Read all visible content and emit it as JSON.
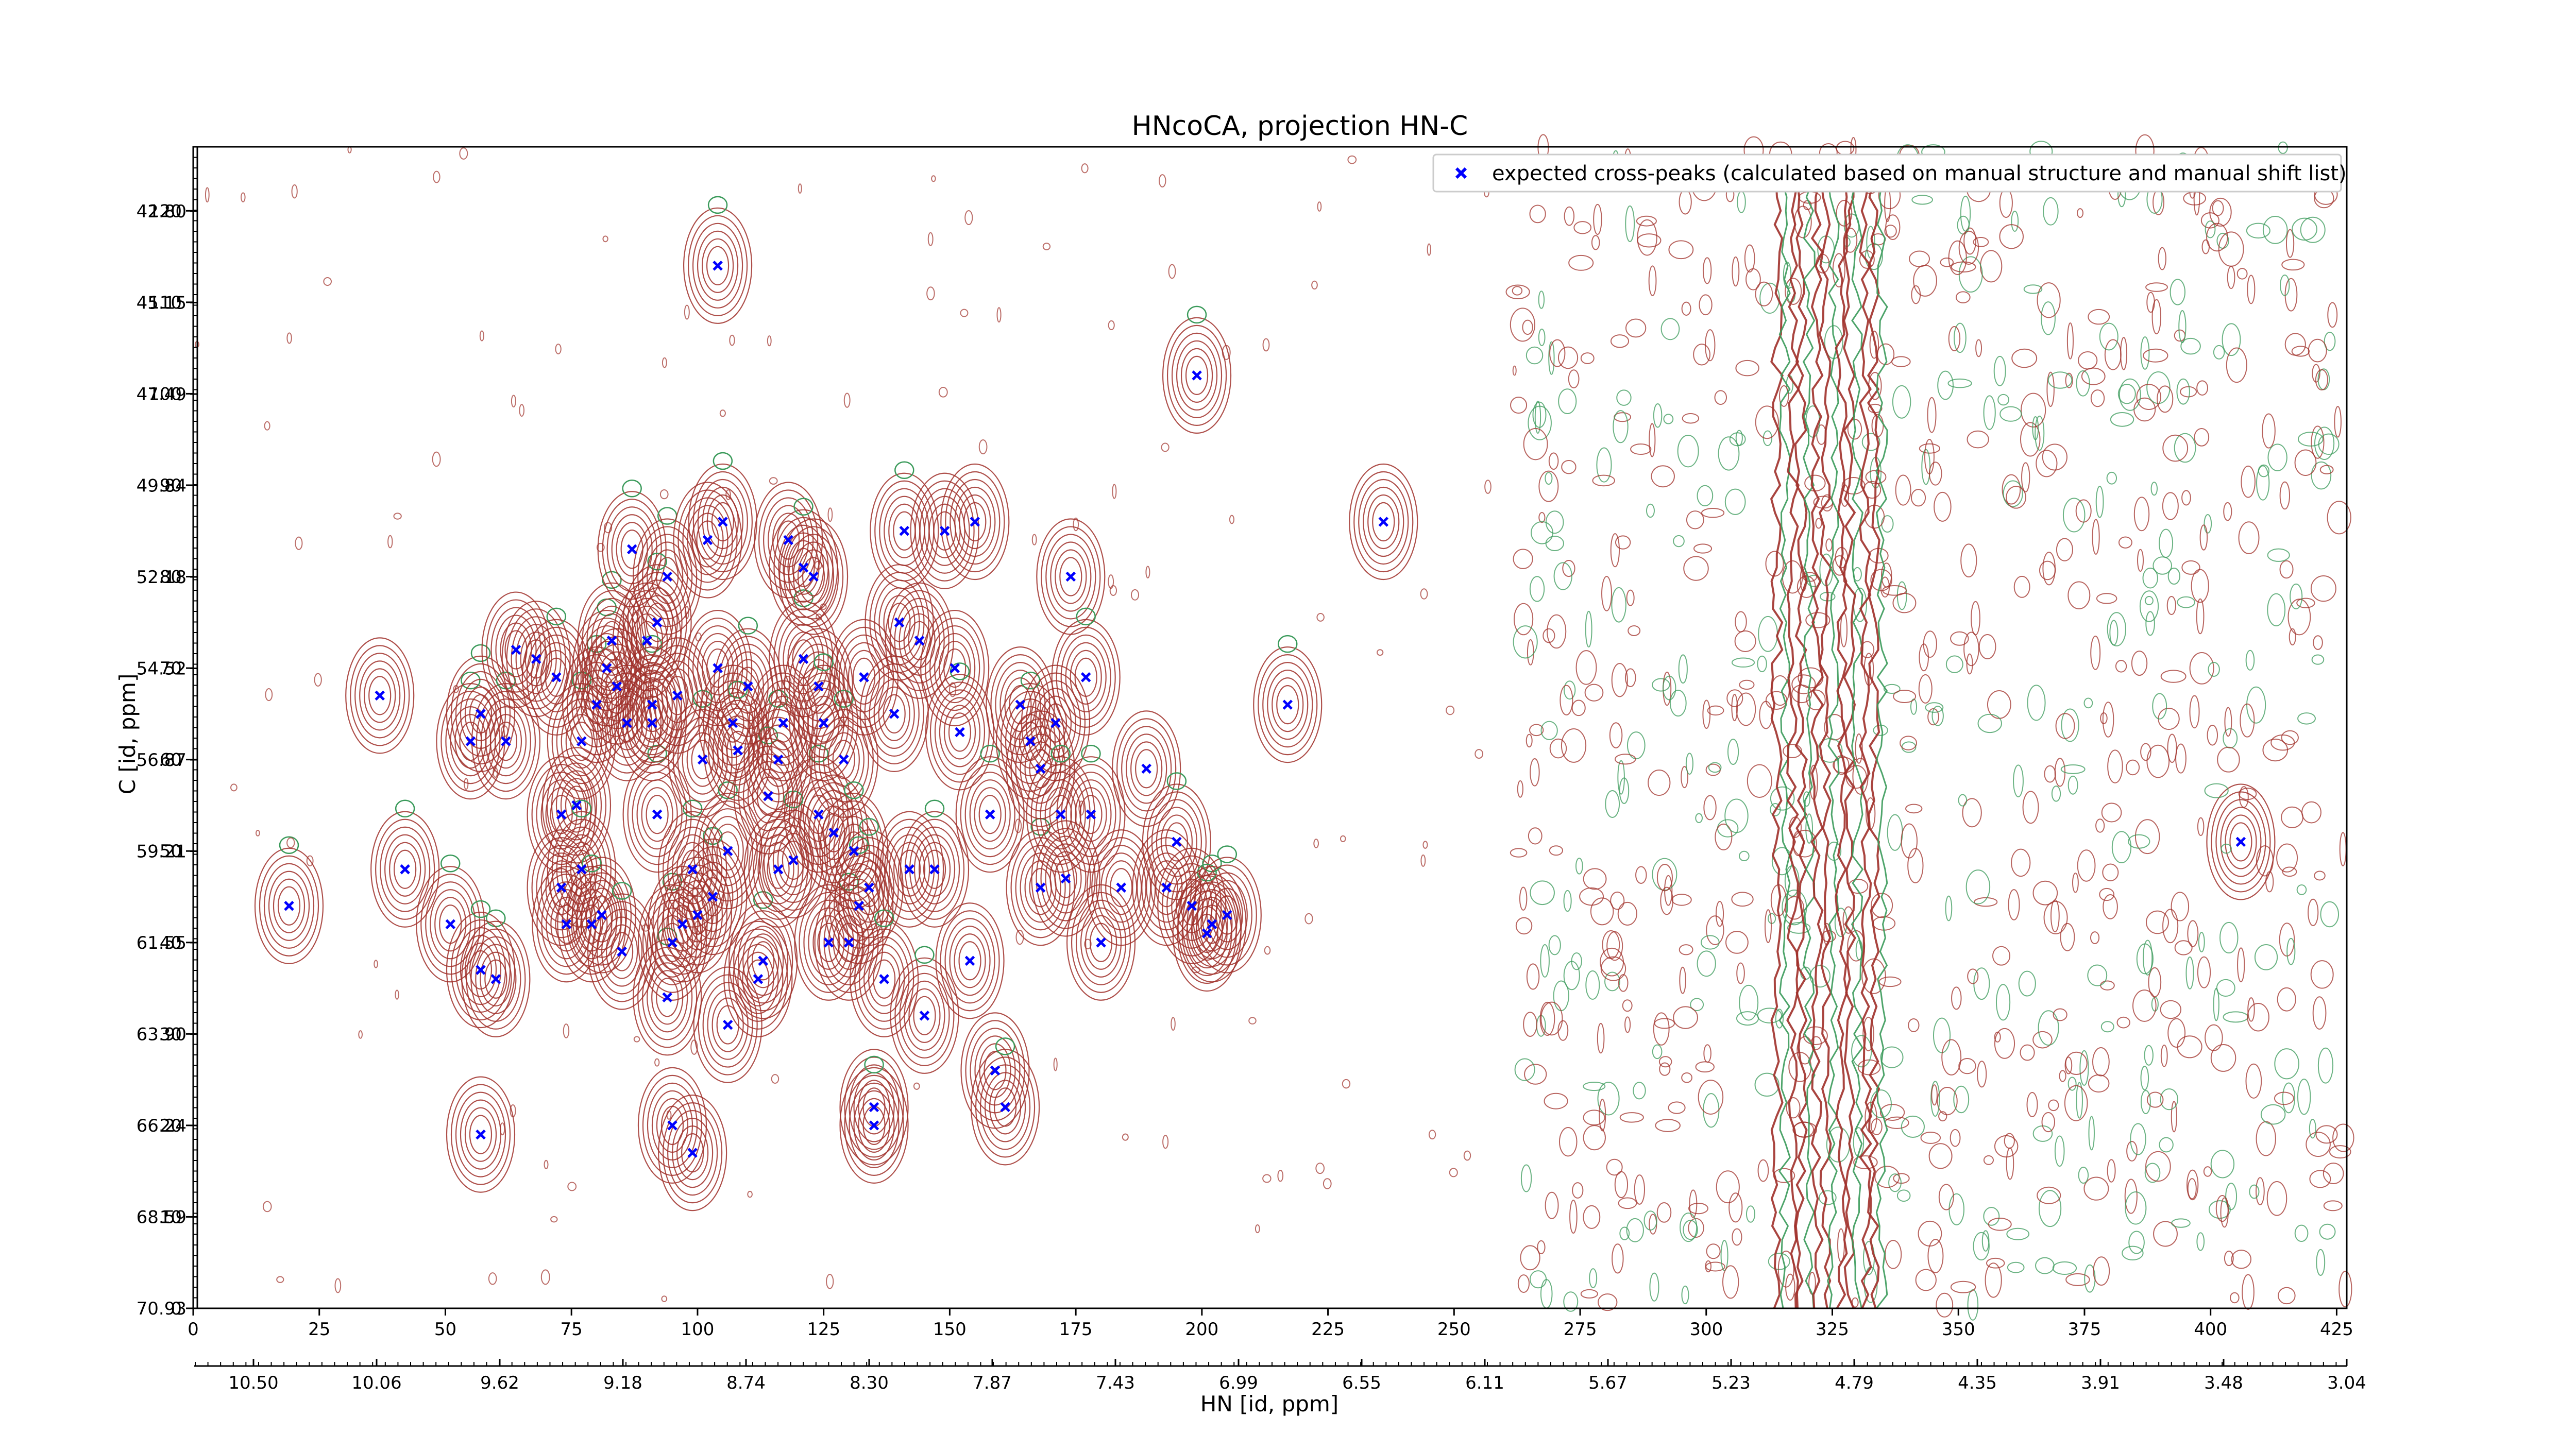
{
  "chart_data": {
    "type": "scatter",
    "title": "HNcoCA, projection HN-C",
    "xlabel": "HN [id, ppm]",
    "ylabel": "C [id, ppm]",
    "x_index_range": [
      0,
      427
    ],
    "y_index_range": [
      0,
      127
    ],
    "x_index_ticks": [
      "0",
      "25",
      "50",
      "75",
      "100",
      "125",
      "150",
      "175",
      "200",
      "225",
      "250",
      "275",
      "300",
      "325",
      "350",
      "375",
      "400",
      "425"
    ],
    "y_index_ticks": [
      "0",
      "10",
      "20",
      "30",
      "40",
      "50",
      "60",
      "70",
      "80",
      "90",
      "100",
      "110",
      "120"
    ],
    "x_ppm_ticks": [
      "10.50",
      "10.06",
      "9.62",
      "9.18",
      "8.74",
      "8.30",
      "7.87",
      "7.43",
      "6.99",
      "6.55",
      "6.11",
      "5.67",
      "5.23",
      "4.79",
      "4.35",
      "3.91",
      "3.48",
      "3.04"
    ],
    "y_ppm_ticks": [
      "70.93",
      "68.59",
      "66.24",
      "63.90",
      "61.55",
      "59.21",
      "56.87",
      "54.52",
      "52.18",
      "49.84",
      "47.49",
      "45.15",
      "42.80"
    ],
    "legend": {
      "entries": [
        {
          "label": "expected cross-peaks (calculated based on manual structure and manual shift list)",
          "color": "#0000ff",
          "marker": "x"
        }
      ],
      "placement": "top-right"
    },
    "colors": {
      "positive_contours": "#a0302a",
      "negative_contours": "#3a9a5a",
      "peaks": "#0000ff"
    },
    "series": [
      {
        "name": "expected cross-peaks (calculated based on manual structure and manual shift list)",
        "points": [
          [
            19,
            44
          ],
          [
            37,
            67
          ],
          [
            42,
            48
          ],
          [
            51,
            42
          ],
          [
            55,
            62
          ],
          [
            57,
            65
          ],
          [
            60,
            36
          ],
          [
            57,
            37
          ],
          [
            57,
            19
          ],
          [
            62,
            62
          ],
          [
            64,
            72
          ],
          [
            68,
            71
          ],
          [
            72,
            69
          ],
          [
            73,
            54
          ],
          [
            73,
            46
          ],
          [
            76,
            55
          ],
          [
            74,
            42
          ],
          [
            77,
            48
          ],
          [
            77,
            62
          ],
          [
            79,
            42
          ],
          [
            80,
            66
          ],
          [
            81,
            43
          ],
          [
            82,
            70
          ],
          [
            83,
            73
          ],
          [
            84,
            68
          ],
          [
            85,
            39
          ],
          [
            86,
            64
          ],
          [
            87,
            83
          ],
          [
            90,
            73
          ],
          [
            91,
            64
          ],
          [
            92,
            54
          ],
          [
            91,
            66
          ],
          [
            92,
            75
          ],
          [
            94,
            80
          ],
          [
            95,
            40
          ],
          [
            94,
            34
          ],
          [
            95,
            20
          ],
          [
            96,
            67
          ],
          [
            97,
            42
          ],
          [
            99,
            48
          ],
          [
            99,
            17
          ],
          [
            100,
            43
          ],
          [
            101,
            60
          ],
          [
            102,
            84
          ],
          [
            103,
            45
          ],
          [
            104,
            114
          ],
          [
            104,
            70
          ],
          [
            105,
            86
          ],
          [
            106,
            50
          ],
          [
            106,
            31
          ],
          [
            107,
            64
          ],
          [
            108,
            61
          ],
          [
            110,
            68
          ],
          [
            112,
            36
          ],
          [
            113,
            38
          ],
          [
            114,
            56
          ],
          [
            116,
            48
          ],
          [
            116,
            60
          ],
          [
            117,
            64
          ],
          [
            118,
            84
          ],
          [
            119,
            49
          ],
          [
            121,
            71
          ],
          [
            121,
            81
          ],
          [
            123,
            80
          ],
          [
            124,
            54
          ],
          [
            124,
            68
          ],
          [
            125,
            64
          ],
          [
            126,
            40
          ],
          [
            127,
            52
          ],
          [
            129,
            60
          ],
          [
            130,
            40
          ],
          [
            131,
            50
          ],
          [
            132,
            44
          ],
          [
            133,
            69
          ],
          [
            134,
            46
          ],
          [
            135,
            22
          ],
          [
            135,
            20
          ],
          [
            137,
            36
          ],
          [
            139,
            65
          ],
          [
            140,
            75
          ],
          [
            141,
            85
          ],
          [
            142,
            48
          ],
          [
            144,
            73
          ],
          [
            145,
            32
          ],
          [
            147,
            48
          ],
          [
            149,
            85
          ],
          [
            151,
            70
          ],
          [
            152,
            63
          ],
          [
            154,
            38
          ],
          [
            155,
            86
          ],
          [
            158,
            54
          ],
          [
            159,
            26
          ],
          [
            161,
            22
          ],
          [
            164,
            66
          ],
          [
            166,
            62
          ],
          [
            168,
            46
          ],
          [
            168,
            59
          ],
          [
            171,
            64
          ],
          [
            172,
            54
          ],
          [
            173,
            47
          ],
          [
            174,
            80
          ],
          [
            177,
            69
          ],
          [
            178,
            54
          ],
          [
            180,
            40
          ],
          [
            184,
            46
          ],
          [
            189,
            59
          ],
          [
            193,
            46
          ],
          [
            195,
            51
          ],
          [
            198,
            44
          ],
          [
            199,
            102
          ],
          [
            201,
            41
          ],
          [
            202,
            42
          ],
          [
            205,
            43
          ],
          [
            217,
            66
          ],
          [
            236,
            86
          ],
          [
            406,
            51
          ]
        ]
      }
    ]
  }
}
